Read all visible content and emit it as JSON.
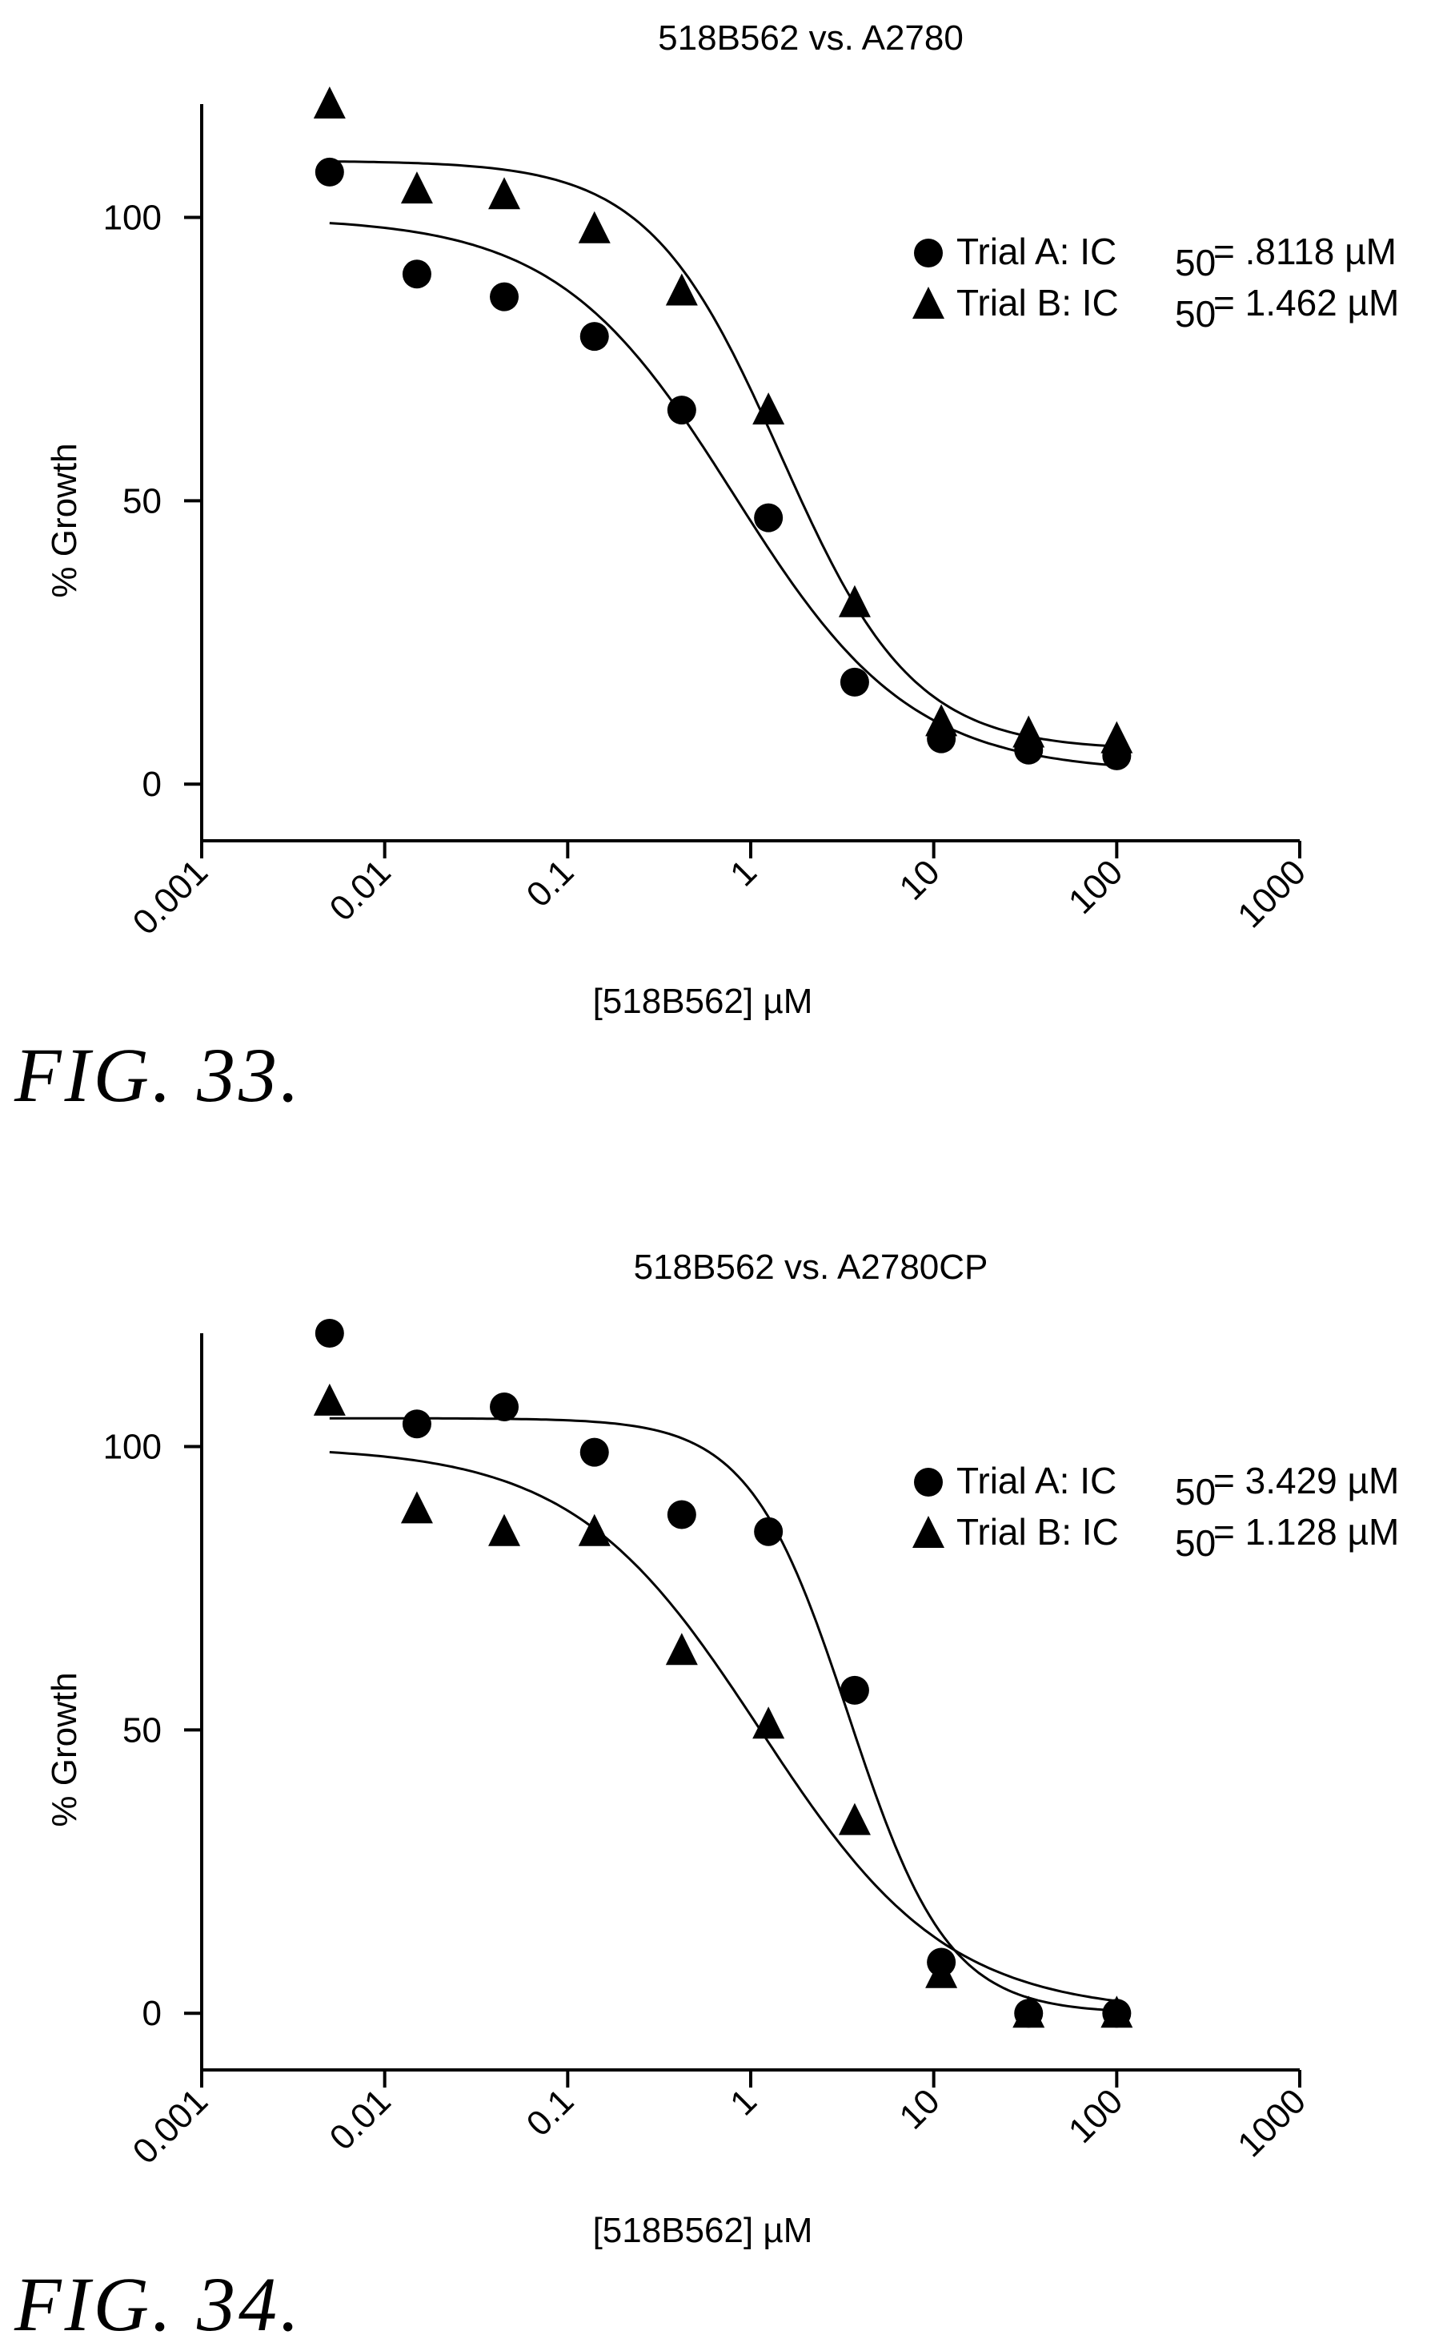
{
  "chart_data": [
    {
      "type": "scatter",
      "title": "518B562 vs. A2780",
      "xlabel": "[518B562] µM",
      "ylabel": "% Growth",
      "x_scale": "log",
      "xlim": [
        0.001,
        1000
      ],
      "ylim": [
        -10,
        120
      ],
      "x_ticks": [
        "0.001",
        "0.01",
        "0.1",
        "1",
        "10",
        "100",
        "1000"
      ],
      "y_ticks": [
        "0",
        "50",
        "100"
      ],
      "legend_position": "top-right",
      "grid": false,
      "caption": "FIG. 33.",
      "series": [
        {
          "name": "Trial A",
          "marker": "circle",
          "legend_label": "Trial  A:  IC",
          "ic_sub": "50",
          "ic_value": "=  .8118  µM",
          "ic50": 0.8118,
          "top": 100,
          "bottom": 2,
          "hill": 0.9,
          "points": [
            {
              "x": 0.005,
              "y": 108
            },
            {
              "x": 0.015,
              "y": 90
            },
            {
              "x": 0.045,
              "y": 86
            },
            {
              "x": 0.14,
              "y": 79
            },
            {
              "x": 0.42,
              "y": 66
            },
            {
              "x": 1.25,
              "y": 47
            },
            {
              "x": 3.7,
              "y": 18
            },
            {
              "x": 11,
              "y": 8
            },
            {
              "x": 33,
              "y": 6
            },
            {
              "x": 100,
              "y": 5
            }
          ]
        },
        {
          "name": "Trial B",
          "marker": "triangle",
          "legend_label": "Trial  B:  IC",
          "ic_sub": "50",
          "ic_value": "=  1.462  µM",
          "ic50": 1.462,
          "top": 110,
          "bottom": 6,
          "hill": 1.2,
          "points": [
            {
              "x": 0.005,
              "y": 120
            },
            {
              "x": 0.015,
              "y": 105
            },
            {
              "x": 0.045,
              "y": 104
            },
            {
              "x": 0.14,
              "y": 98
            },
            {
              "x": 0.42,
              "y": 87
            },
            {
              "x": 1.25,
              "y": 66
            },
            {
              "x": 3.7,
              "y": 32
            },
            {
              "x": 11,
              "y": 11
            },
            {
              "x": 33,
              "y": 9
            },
            {
              "x": 100,
              "y": 8
            }
          ]
        }
      ]
    },
    {
      "type": "scatter",
      "title": "518B562 vs. A2780CP",
      "xlabel": "[518B562] µM",
      "ylabel": "% Growth",
      "x_scale": "log",
      "xlim": [
        0.001,
        1000
      ],
      "ylim": [
        -10,
        120
      ],
      "x_ticks": [
        "0.001",
        "0.01",
        "0.1",
        "1",
        "10",
        "100",
        "1000"
      ],
      "y_ticks": [
        "0",
        "50",
        "100"
      ],
      "legend_position": "top-right",
      "grid": false,
      "caption": "FIG. 34.",
      "series": [
        {
          "name": "Trial A",
          "marker": "circle",
          "legend_label": "Trial  A:  IC",
          "ic_sub": "50",
          "ic_value": "=  3.429  µM",
          "ic50": 3.429,
          "top": 105,
          "bottom": 0,
          "hill": 1.6,
          "points": [
            {
              "x": 0.005,
              "y": 120
            },
            {
              "x": 0.015,
              "y": 104
            },
            {
              "x": 0.045,
              "y": 107
            },
            {
              "x": 0.14,
              "y": 99
            },
            {
              "x": 0.42,
              "y": 88
            },
            {
              "x": 1.25,
              "y": 85
            },
            {
              "x": 3.7,
              "y": 57
            },
            {
              "x": 11,
              "y": 9
            },
            {
              "x": 33,
              "y": 0
            },
            {
              "x": 100,
              "y": 0
            }
          ]
        },
        {
          "name": "Trial B",
          "marker": "triangle",
          "legend_label": "Trial  B:  IC",
          "ic_sub": "50",
          "ic_value": "=  1.128  µM",
          "ic50": 1.128,
          "top": 100,
          "bottom": 0,
          "hill": 0.85,
          "points": [
            {
              "x": 0.005,
              "y": 108
            },
            {
              "x": 0.015,
              "y": 89
            },
            {
              "x": 0.045,
              "y": 85
            },
            {
              "x": 0.14,
              "y": 85
            },
            {
              "x": 0.42,
              "y": 64
            },
            {
              "x": 1.25,
              "y": 51
            },
            {
              "x": 3.7,
              "y": 34
            },
            {
              "x": 11,
              "y": 7
            },
            {
              "x": 33,
              "y": 0
            },
            {
              "x": 100,
              "y": 0
            }
          ]
        }
      ]
    }
  ]
}
